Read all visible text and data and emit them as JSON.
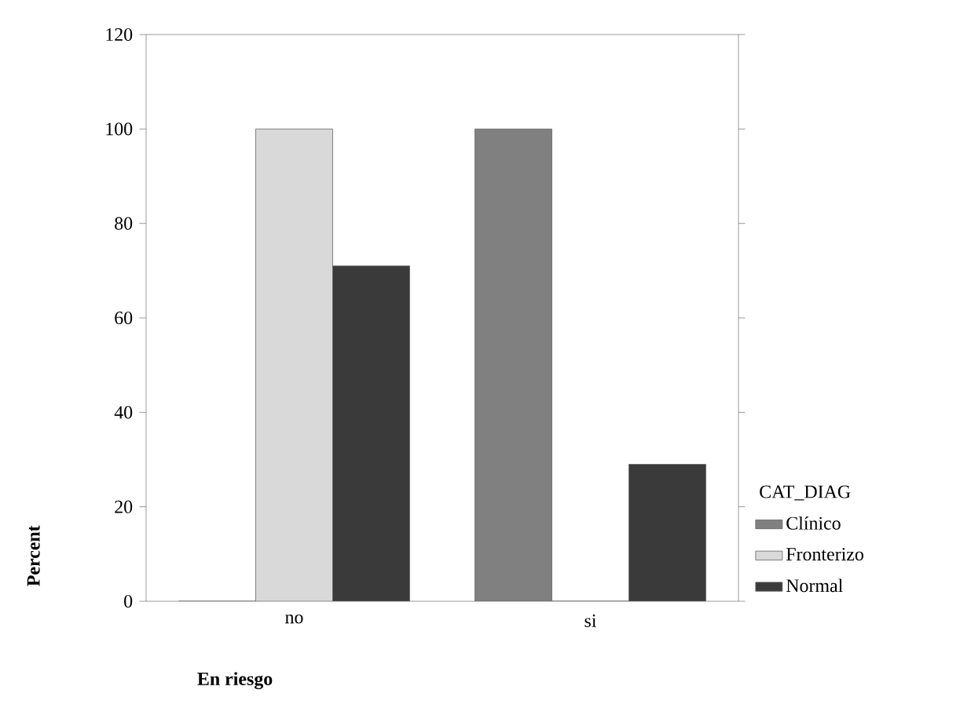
{
  "chart_data": {
    "type": "bar",
    "xlabel": "En riesgo",
    "ylabel": "Percent",
    "legend_title": "CAT_DIAG",
    "categories": [
      "no",
      "si"
    ],
    "series": [
      {
        "name": "Clínico",
        "color": "#808080",
        "values": [
          0,
          100
        ]
      },
      {
        "name": "Fronterizo",
        "color": "#d9d9d9",
        "values": [
          100,
          0
        ]
      },
      {
        "name": "Normal",
        "color": "#3a3a3a",
        "values": [
          71,
          29
        ]
      }
    ],
    "ylim": [
      0,
      120
    ],
    "yticks": [
      0,
      20,
      40,
      60,
      80,
      100,
      120
    ],
    "legend": "right",
    "grid": false
  }
}
